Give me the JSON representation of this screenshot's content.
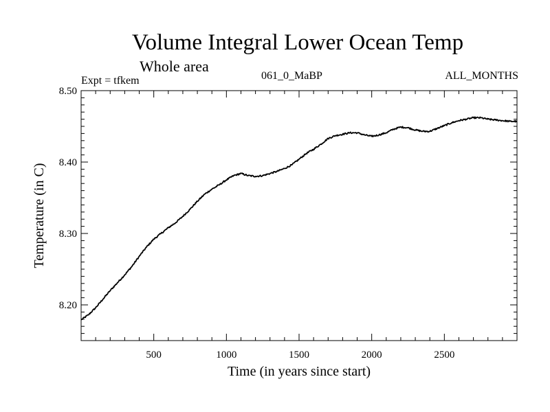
{
  "chart_data": {
    "type": "line",
    "title": "Volume Integral Lower Ocean Temp",
    "subtitle": "Whole area",
    "annotations": {
      "experiment": "Expt = tfkem",
      "period": "061_0_MaBP",
      "months": "ALL_MONTHS"
    },
    "xlabel": "Time (in years since start)",
    "ylabel": "Temperature (in C)",
    "xlim": [
      0,
      3000
    ],
    "ylim": [
      8.15,
      8.5
    ],
    "xticks": [
      500,
      1000,
      1500,
      2000,
      2500
    ],
    "xtick_labels": [
      "500",
      "1000",
      "1500",
      "2000",
      "2500"
    ],
    "yticks": [
      8.2,
      8.3,
      8.4,
      8.5
    ],
    "ytick_labels": [
      "8.20",
      "8.30",
      "8.40",
      "8.50"
    ],
    "grid": false,
    "series": [
      {
        "color": "#000000",
        "x": [
          0,
          50,
          100,
          150,
          200,
          250,
          300,
          350,
          400,
          450,
          500,
          550,
          600,
          650,
          700,
          750,
          800,
          850,
          900,
          950,
          1000,
          1050,
          1100,
          1150,
          1200,
          1250,
          1300,
          1350,
          1400,
          1450,
          1500,
          1550,
          1600,
          1650,
          1700,
          1750,
          1800,
          1850,
          1900,
          1950,
          2000,
          2050,
          2100,
          2150,
          2200,
          2250,
          2300,
          2350,
          2400,
          2450,
          2500,
          2550,
          2600,
          2650,
          2700,
          2750,
          2800,
          2850,
          2900,
          2950,
          3000
        ],
        "y": [
          8.179,
          8.186,
          8.196,
          8.208,
          8.22,
          8.231,
          8.242,
          8.254,
          8.268,
          8.281,
          8.292,
          8.3,
          8.308,
          8.315,
          8.324,
          8.334,
          8.345,
          8.355,
          8.362,
          8.368,
          8.375,
          8.381,
          8.384,
          8.381,
          8.38,
          8.381,
          8.384,
          8.387,
          8.391,
          8.396,
          8.404,
          8.412,
          8.418,
          8.425,
          8.433,
          8.437,
          8.439,
          8.441,
          8.441,
          8.438,
          8.436,
          8.438,
          8.441,
          8.446,
          8.449,
          8.448,
          8.445,
          8.443,
          8.443,
          8.447,
          8.451,
          8.455,
          8.458,
          8.46,
          8.462,
          8.462,
          8.46,
          8.459,
          8.458,
          8.457,
          8.457
        ]
      }
    ]
  }
}
